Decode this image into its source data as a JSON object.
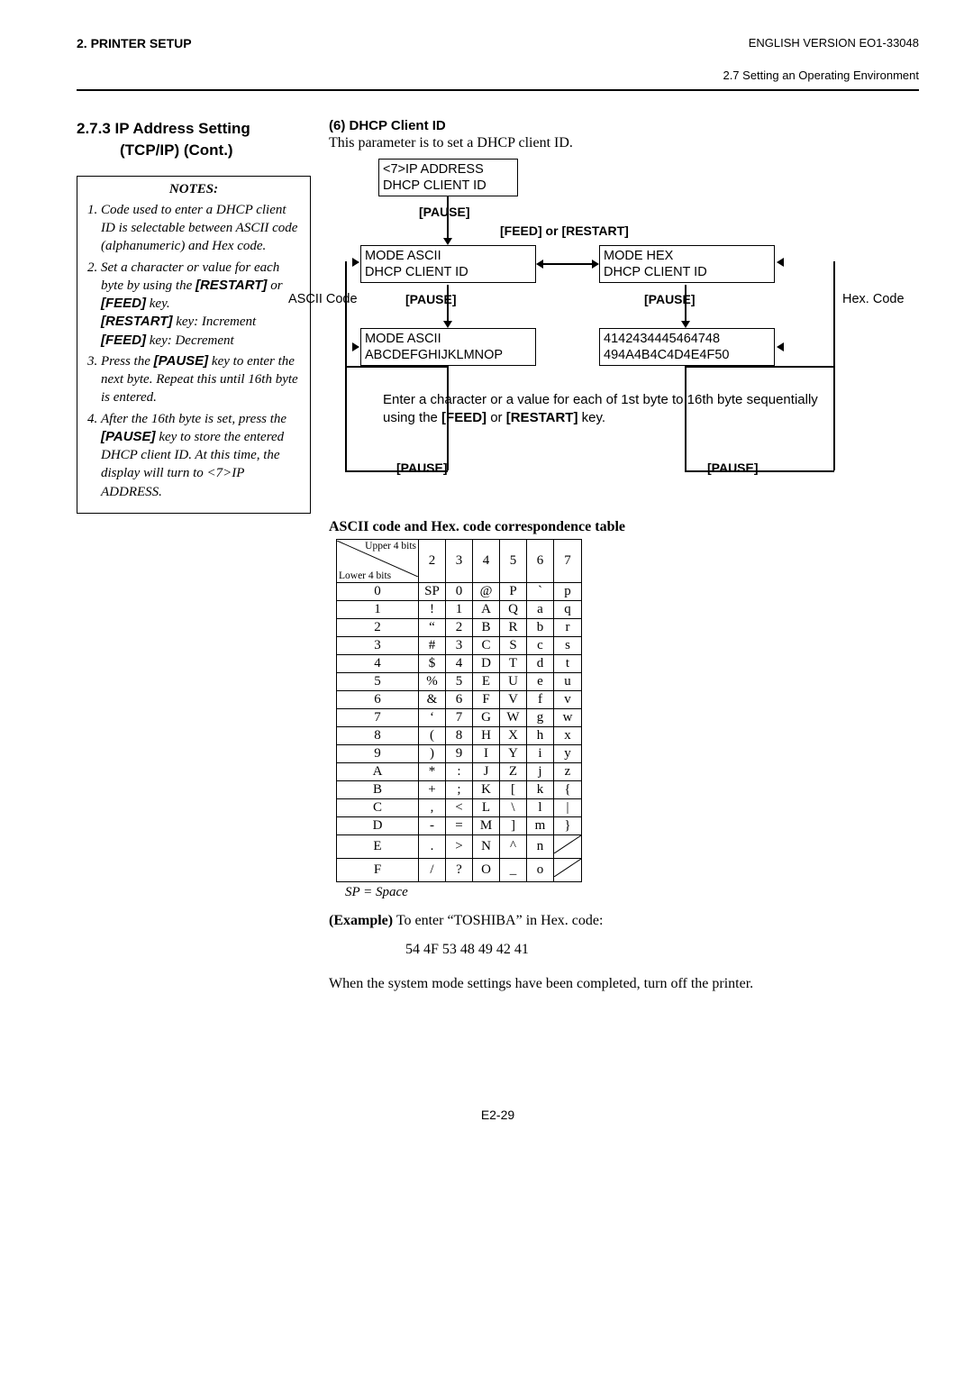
{
  "header": {
    "left": "2. PRINTER SETUP",
    "right": "ENGLISH VERSION EO1-33048",
    "sub": "2.7 Setting an Operating Environment"
  },
  "section_title_1": "2.7.3  IP Address Setting",
  "section_title_2": "(TCP/IP) (Cont.)",
  "notes": {
    "title": "NOTES:",
    "item1_a": "Code used to enter a DHCP client ID is selectable between ASCII code (alphanumeric) and Hex code.",
    "item2_a": "Set a character or value for each byte by using the ",
    "item2_b": "[RESTART]",
    "item2_c": " or ",
    "item2_d": "[FEED]",
    "item2_e": " key.",
    "item2_f": "[RESTART]",
    "item2_g": " key: Increment",
    "item2_h": "[FEED]",
    "item2_i": " key: Decrement",
    "item3_a": "Press the ",
    "item3_b": "[PAUSE]",
    "item3_c": " key to enter the next byte.  Repeat this until 16th byte is entered.",
    "item4_a": "After the 16th byte is set, press the ",
    "item4_b": "[PAUSE]",
    "item4_c": " key to store the entered DHCP client ID.  At this time, the display will turn to <7>IP ADDRESS."
  },
  "right": {
    "h6": "(6)  DHCP Client ID",
    "intro": "This parameter is to set a DHCP client ID."
  },
  "diagram": {
    "box1_l1": "<7>IP ADDRESS",
    "box1_l2": "DHCP CLIENT ID",
    "pause": "[PAUSE]",
    "feed_restart": "[FEED] or [RESTART]",
    "box_ascii_l1": "MODE      ASCII",
    "box_ascii_l2": "DHCP CLIENT ID",
    "box_hex_l1": "MODE      HEX",
    "box_hex_l2": "DHCP CLIENT ID",
    "ascii_code": "ASCII Code",
    "hex_code": "Hex. Code",
    "box_ascii2_l1": "MODE        ASCII",
    "box_ascii2_l2": "ABCDEFGHIJKLMNOP",
    "box_hex2_l1": "4142434445464748",
    "box_hex2_l2": "494A4B4C4D4E4F50",
    "enter_text": "Enter a character or a value for each of 1st byte to 16th byte sequentially using the [FEED] or [RESTART] key.",
    "enter_text_a": "Enter a character or a value for each of 1st byte to 16th byte sequentially using the ",
    "enter_text_b": "[FEED]",
    "enter_text_c": " or ",
    "enter_text_d": "[RESTART]",
    "enter_text_e": " key."
  },
  "table_title": "ASCII code and Hex. code correspondence table",
  "table": {
    "upper": "Upper 4 bits",
    "lower": "Lower 4 bits",
    "cols": [
      "2",
      "3",
      "4",
      "5",
      "6",
      "7"
    ],
    "rows": [
      {
        "h": "0",
        "c": [
          "SP",
          "0",
          "@",
          "P",
          "`",
          "p"
        ]
      },
      {
        "h": "1",
        "c": [
          "!",
          "1",
          "A",
          "Q",
          "a",
          "q"
        ]
      },
      {
        "h": "2",
        "c": [
          "“",
          "2",
          "B",
          "R",
          "b",
          "r"
        ]
      },
      {
        "h": "3",
        "c": [
          "#",
          "3",
          "C",
          "S",
          "c",
          "s"
        ]
      },
      {
        "h": "4",
        "c": [
          "$",
          "4",
          "D",
          "T",
          "d",
          "t"
        ]
      },
      {
        "h": "5",
        "c": [
          "%",
          "5",
          "E",
          "U",
          "e",
          "u"
        ]
      },
      {
        "h": "6",
        "c": [
          "&",
          "6",
          "F",
          "V",
          "f",
          "v"
        ]
      },
      {
        "h": "7",
        "c": [
          "‘",
          "7",
          "G",
          "W",
          "g",
          "w"
        ]
      },
      {
        "h": "8",
        "c": [
          "(",
          "8",
          "H",
          "X",
          "h",
          "x"
        ]
      },
      {
        "h": "9",
        "c": [
          ")",
          "9",
          "I",
          "Y",
          "i",
          "y"
        ]
      },
      {
        "h": "A",
        "c": [
          "*",
          ":",
          "J",
          "Z",
          "j",
          "z"
        ]
      },
      {
        "h": "B",
        "c": [
          "+",
          ";",
          "K",
          "[",
          "k",
          "{"
        ]
      },
      {
        "h": "C",
        "c": [
          ",",
          "<",
          "L",
          "\\",
          "l",
          "|"
        ]
      },
      {
        "h": "D",
        "c": [
          "-",
          "=",
          "M",
          "]",
          "m",
          "}"
        ]
      },
      {
        "h": "E",
        "c": [
          ".",
          ">",
          "N",
          "^",
          "n",
          "SLASH"
        ]
      },
      {
        "h": "F",
        "c": [
          "/",
          "?",
          "O",
          "_",
          "o",
          "SLASH"
        ]
      }
    ]
  },
  "sp_note": "SP = Space",
  "example_label": "(Example)",
  "example_text": " To enter “TOSHIBA” in Hex. code:",
  "example_hex": "54 4F 53 48 49 42 41",
  "closing": "When the system mode settings have been completed, turn off the printer.",
  "page_num": "E2-29"
}
